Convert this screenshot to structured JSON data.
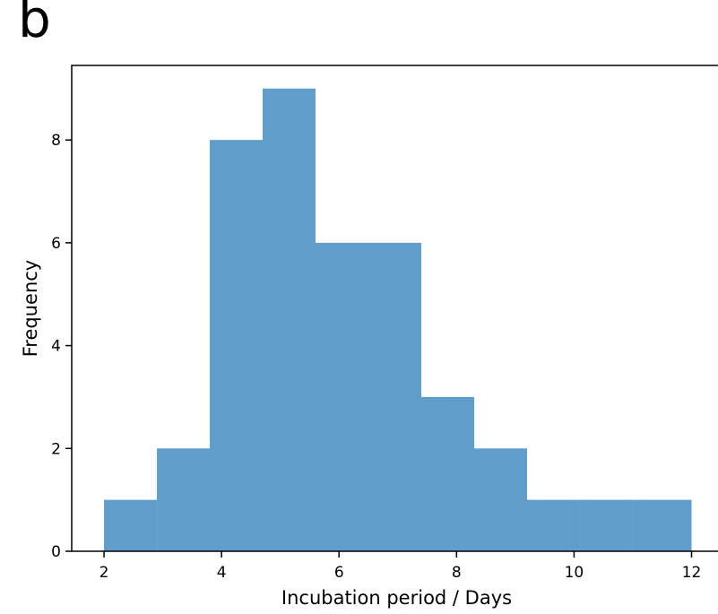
{
  "panel_label": "b",
  "chart_data": {
    "type": "bar",
    "subtype": "histogram",
    "title": "",
    "xlabel": "Incubation period / Days",
    "ylabel": "Frequency",
    "bin_edges": [
      2,
      2.9,
      3.8,
      4.7,
      5.6,
      6.5,
      7.4,
      8.3,
      9.2,
      10.1,
      11.0,
      12
    ],
    "values": [
      1,
      2,
      8,
      9,
      6,
      6,
      3,
      2,
      1,
      1,
      1
    ],
    "xlim": [
      1.45,
      12.45
    ],
    "ylim": [
      0,
      9.45
    ],
    "xticks": [
      2,
      4,
      6,
      8,
      10,
      12
    ],
    "xtick_labels": [
      "2",
      "4",
      "6",
      "8",
      "10",
      "12"
    ],
    "yticks": [
      0,
      2,
      4,
      6,
      8
    ],
    "ytick_labels": [
      "0",
      "2",
      "4",
      "6",
      "8"
    ],
    "grid": false,
    "legend": "none",
    "bar_color": "#5f9ecb"
  }
}
